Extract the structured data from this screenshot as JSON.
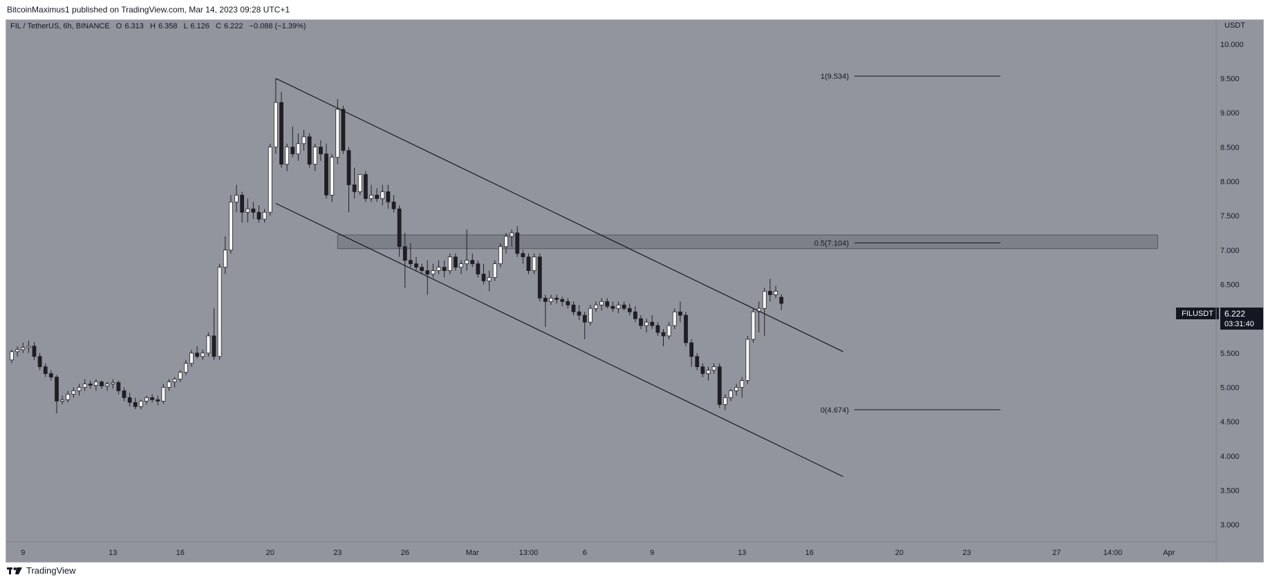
{
  "header": {
    "publisher": "BitcoinMaximus1 published on TradingView.com, Mar 14, 2023 09:28 UTC+1"
  },
  "legend": {
    "symbol": "FIL / TetherUS, 6h, BINANCE",
    "o_label": "O",
    "o": "6.313",
    "h_label": "H",
    "h": "6.358",
    "l_label": "L",
    "l": "6.126",
    "c_label": "C",
    "c": "6.222",
    "change": "−0.088 (−1.39%)"
  },
  "price_scale": {
    "currency": "USDT",
    "ticker": "FILUSDT",
    "last_price": "6.222",
    "countdown": "03:31:40"
  },
  "footer": {
    "brand": "TradingView"
  },
  "colors": {
    "background": "#93959e",
    "candle_up": "#ffffff",
    "candle_down": "#1e1e24",
    "line": "#131722",
    "zone": "#6e7079"
  },
  "chart_data": {
    "type": "candlestick",
    "ylim": [
      2.75,
      10.35
    ],
    "y_ticks": [
      "3.000",
      "3.500",
      "4.000",
      "4.500",
      "5.000",
      "5.500",
      "6.000",
      "6.500",
      "7.000",
      "7.500",
      "8.000",
      "8.500",
      "9.000",
      "9.500",
      "10.000"
    ],
    "x_ticks": [
      {
        "label": "9",
        "x": 0.5
      },
      {
        "label": "13",
        "x": 4.5
      },
      {
        "label": "16",
        "x": 7.5
      },
      {
        "label": "20",
        "x": 11.5
      },
      {
        "label": "23",
        "x": 14.5
      },
      {
        "label": "26",
        "x": 17.5
      },
      {
        "label": "Mar",
        "x": 20.5
      },
      {
        "label": "13:00",
        "x": 23
      },
      {
        "label": "6",
        "x": 25.5
      },
      {
        "label": "9",
        "x": 28.5
      },
      {
        "label": "13",
        "x": 32.5
      },
      {
        "label": "16",
        "x": 35.5
      },
      {
        "label": "20",
        "x": 39.5
      },
      {
        "label": "23",
        "x": 42.5
      },
      {
        "label": "27",
        "x": 46.5
      },
      {
        "label": "14:00",
        "x": 49
      },
      {
        "label": "Apr",
        "x": 51.5
      }
    ],
    "candles": [
      [
        0.0,
        5.4,
        5.55,
        5.35,
        5.52
      ],
      [
        0.25,
        5.52,
        5.6,
        5.45,
        5.55
      ],
      [
        0.5,
        5.55,
        5.65,
        5.5,
        5.58
      ],
      [
        0.75,
        5.58,
        5.68,
        5.5,
        5.6
      ],
      [
        1.0,
        5.6,
        5.66,
        5.4,
        5.45
      ],
      [
        1.25,
        5.45,
        5.5,
        5.25,
        5.3
      ],
      [
        1.5,
        5.3,
        5.35,
        5.15,
        5.2
      ],
      [
        1.75,
        5.2,
        5.25,
        5.1,
        5.15
      ],
      [
        2.0,
        5.15,
        5.18,
        4.62,
        4.8
      ],
      [
        2.25,
        4.8,
        4.88,
        4.75,
        4.82
      ],
      [
        2.5,
        4.82,
        4.95,
        4.78,
        4.9
      ],
      [
        2.75,
        4.9,
        5.0,
        4.85,
        4.95
      ],
      [
        3.0,
        4.95,
        5.05,
        4.88,
        5.0
      ],
      [
        3.25,
        5.0,
        5.12,
        4.95,
        5.05
      ],
      [
        3.5,
        5.05,
        5.1,
        4.98,
        5.03
      ],
      [
        3.75,
        5.03,
        5.12,
        4.95,
        5.08
      ],
      [
        4.0,
        5.08,
        5.1,
        4.98,
        5.02
      ],
      [
        4.25,
        5.02,
        5.08,
        4.95,
        5.05
      ],
      [
        4.5,
        5.05,
        5.12,
        4.98,
        5.07
      ],
      [
        4.75,
        5.07,
        5.1,
        4.9,
        4.95
      ],
      [
        5.0,
        4.95,
        5.0,
        4.8,
        4.85
      ],
      [
        5.25,
        4.85,
        4.92,
        4.72,
        4.78
      ],
      [
        5.5,
        4.78,
        4.85,
        4.68,
        4.72
      ],
      [
        5.75,
        4.72,
        4.82,
        4.68,
        4.8
      ],
      [
        6.0,
        4.8,
        4.88,
        4.75,
        4.85
      ],
      [
        6.25,
        4.85,
        4.9,
        4.78,
        4.82
      ],
      [
        6.5,
        4.82,
        4.88,
        4.74,
        4.8
      ],
      [
        6.75,
        4.8,
        5.05,
        4.76,
        5.0
      ],
      [
        7.0,
        5.0,
        5.12,
        4.95,
        5.08
      ],
      [
        7.25,
        5.08,
        5.15,
        5.0,
        5.12
      ],
      [
        7.5,
        5.12,
        5.25,
        5.08,
        5.22
      ],
      [
        7.75,
        5.22,
        5.4,
        5.18,
        5.35
      ],
      [
        8.0,
        5.35,
        5.55,
        5.3,
        5.5
      ],
      [
        8.25,
        5.5,
        5.6,
        5.42,
        5.45
      ],
      [
        8.5,
        5.45,
        5.55,
        5.4,
        5.5
      ],
      [
        8.75,
        5.5,
        5.8,
        5.45,
        5.75
      ],
      [
        9.0,
        5.75,
        6.15,
        5.4,
        5.45
      ],
      [
        9.25,
        5.45,
        6.8,
        5.4,
        6.75
      ],
      [
        9.5,
        6.75,
        7.2,
        6.65,
        7.0
      ],
      [
        9.75,
        7.0,
        7.8,
        6.95,
        7.7
      ],
      [
        10.0,
        7.7,
        7.95,
        7.55,
        7.8
      ],
      [
        10.25,
        7.8,
        7.85,
        7.4,
        7.55
      ],
      [
        10.5,
        7.55,
        7.75,
        7.4,
        7.6
      ],
      [
        10.75,
        7.6,
        7.7,
        7.45,
        7.55
      ],
      [
        11.0,
        7.55,
        7.65,
        7.4,
        7.45
      ],
      [
        11.25,
        7.45,
        7.6,
        7.4,
        7.55
      ],
      [
        11.5,
        7.55,
        8.55,
        7.5,
        8.5
      ],
      [
        11.75,
        8.5,
        9.5,
        8.4,
        9.15
      ],
      [
        12.0,
        9.15,
        9.3,
        8.2,
        8.25
      ],
      [
        12.25,
        8.25,
        8.55,
        8.15,
        8.5
      ],
      [
        12.5,
        8.5,
        8.8,
        8.35,
        8.4
      ],
      [
        12.75,
        8.4,
        8.7,
        8.3,
        8.55
      ],
      [
        13.0,
        8.55,
        8.75,
        8.45,
        8.65
      ],
      [
        13.25,
        8.65,
        8.7,
        8.2,
        8.25
      ],
      [
        13.5,
        8.25,
        8.55,
        8.15,
        8.5
      ],
      [
        13.75,
        8.5,
        8.6,
        8.3,
        8.4
      ],
      [
        14.0,
        8.4,
        8.55,
        7.75,
        7.8
      ],
      [
        14.25,
        7.8,
        8.4,
        7.7,
        8.35
      ],
      [
        14.5,
        8.35,
        9.2,
        8.25,
        9.05
      ],
      [
        14.75,
        9.05,
        9.1,
        8.4,
        8.45
      ],
      [
        15.0,
        8.45,
        8.5,
        7.55,
        7.95
      ],
      [
        15.25,
        7.95,
        8.2,
        7.75,
        7.85
      ],
      [
        15.5,
        7.85,
        8.1,
        7.8,
        8.1
      ],
      [
        15.75,
        8.1,
        8.15,
        7.7,
        7.75
      ],
      [
        16.0,
        7.75,
        7.95,
        7.7,
        7.8
      ],
      [
        16.25,
        7.8,
        7.9,
        7.7,
        7.75
      ],
      [
        16.5,
        7.75,
        7.95,
        7.65,
        7.85
      ],
      [
        16.75,
        7.85,
        7.95,
        7.6,
        7.7
      ],
      [
        17.0,
        7.7,
        7.8,
        7.55,
        7.6
      ],
      [
        17.25,
        7.6,
        7.65,
        6.9,
        7.05
      ],
      [
        17.5,
        7.05,
        7.25,
        6.45,
        6.85
      ],
      [
        17.75,
        6.85,
        7.1,
        6.75,
        6.8
      ],
      [
        18.0,
        6.8,
        6.9,
        6.7,
        6.75
      ],
      [
        18.25,
        6.75,
        6.8,
        6.65,
        6.7
      ],
      [
        18.5,
        6.7,
        6.85,
        6.35,
        6.65
      ],
      [
        18.75,
        6.65,
        6.8,
        6.6,
        6.7
      ],
      [
        19.0,
        6.7,
        6.85,
        6.65,
        6.75
      ],
      [
        19.25,
        6.75,
        6.85,
        6.6,
        6.7
      ],
      [
        19.5,
        6.7,
        6.95,
        6.65,
        6.9
      ],
      [
        19.75,
        6.9,
        6.95,
        6.7,
        6.75
      ],
      [
        20.0,
        6.75,
        6.85,
        6.65,
        6.8
      ],
      [
        20.25,
        6.8,
        7.3,
        6.7,
        6.85
      ],
      [
        20.5,
        6.85,
        6.95,
        6.75,
        6.8
      ],
      [
        20.75,
        6.8,
        6.85,
        6.6,
        6.65
      ],
      [
        21.0,
        6.65,
        6.8,
        6.5,
        6.55
      ],
      [
        21.25,
        6.55,
        6.7,
        6.4,
        6.6
      ],
      [
        21.5,
        6.6,
        6.85,
        6.55,
        6.8
      ],
      [
        21.75,
        6.8,
        7.1,
        6.75,
        7.05
      ],
      [
        22.0,
        7.05,
        7.25,
        6.95,
        7.2
      ],
      [
        22.25,
        7.2,
        7.3,
        7.05,
        7.25
      ],
      [
        22.5,
        7.25,
        7.35,
        6.9,
        6.95
      ],
      [
        22.75,
        6.95,
        7.0,
        6.8,
        6.9
      ],
      [
        23.0,
        6.9,
        6.95,
        6.65,
        6.7
      ],
      [
        23.25,
        6.7,
        6.95,
        6.65,
        6.9
      ],
      [
        23.5,
        6.9,
        6.95,
        6.25,
        6.3
      ],
      [
        23.75,
        6.3,
        6.35,
        5.88,
        6.25
      ],
      [
        24.0,
        6.25,
        6.35,
        6.2,
        6.3
      ],
      [
        24.25,
        6.3,
        6.35,
        6.22,
        6.28
      ],
      [
        24.5,
        6.28,
        6.32,
        6.18,
        6.25
      ],
      [
        24.75,
        6.25,
        6.3,
        6.15,
        6.2
      ],
      [
        25.0,
        6.2,
        6.25,
        6.05,
        6.1
      ],
      [
        25.25,
        6.1,
        6.2,
        5.98,
        6.05
      ],
      [
        25.5,
        6.05,
        6.1,
        5.7,
        5.95
      ],
      [
        25.75,
        5.95,
        6.2,
        5.9,
        6.15
      ],
      [
        26.0,
        6.15,
        6.25,
        6.1,
        6.2
      ],
      [
        26.25,
        6.2,
        6.3,
        6.12,
        6.25
      ],
      [
        26.5,
        6.25,
        6.3,
        6.15,
        6.18
      ],
      [
        26.75,
        6.18,
        6.25,
        6.1,
        6.15
      ],
      [
        27.0,
        6.15,
        6.25,
        6.08,
        6.2
      ],
      [
        27.25,
        6.2,
        6.25,
        6.12,
        6.15
      ],
      [
        27.5,
        6.15,
        6.22,
        6.05,
        6.1
      ],
      [
        27.75,
        6.1,
        6.18,
        5.95,
        6.0
      ],
      [
        28.0,
        6.0,
        6.05,
        5.85,
        5.9
      ],
      [
        28.25,
        5.9,
        6.0,
        5.8,
        5.95
      ],
      [
        28.5,
        5.95,
        6.05,
        5.85,
        5.9
      ],
      [
        28.75,
        5.9,
        5.95,
        5.75,
        5.8
      ],
      [
        29.0,
        5.8,
        5.85,
        5.6,
        5.75
      ],
      [
        29.25,
        5.75,
        5.95,
        5.7,
        5.9
      ],
      [
        29.5,
        5.9,
        6.15,
        5.85,
        6.1
      ],
      [
        29.75,
        6.1,
        6.25,
        5.95,
        6.05
      ],
      [
        30.0,
        6.05,
        6.1,
        5.6,
        5.65
      ],
      [
        30.25,
        5.65,
        5.7,
        5.3,
        5.45
      ],
      [
        30.5,
        5.45,
        5.5,
        5.25,
        5.3
      ],
      [
        30.75,
        5.3,
        5.35,
        5.15,
        5.2
      ],
      [
        31.0,
        5.2,
        5.3,
        5.1,
        5.25
      ],
      [
        31.25,
        5.25,
        5.35,
        5.2,
        5.3
      ],
      [
        31.5,
        5.3,
        5.35,
        4.7,
        4.75
      ],
      [
        31.75,
        4.75,
        4.9,
        4.67,
        4.85
      ],
      [
        32.0,
        4.85,
        4.98,
        4.8,
        4.95
      ],
      [
        32.25,
        4.95,
        5.05,
        4.88,
        5.0
      ],
      [
        32.5,
        5.0,
        5.15,
        4.85,
        5.1
      ],
      [
        32.75,
        5.1,
        5.75,
        5.05,
        5.7
      ],
      [
        33.0,
        5.7,
        6.15,
        5.65,
        6.1
      ],
      [
        33.25,
        6.1,
        6.25,
        5.8,
        6.15
      ],
      [
        33.5,
        6.15,
        6.45,
        5.75,
        6.4
      ],
      [
        33.75,
        6.4,
        6.58,
        6.25,
        6.35
      ],
      [
        34.0,
        6.35,
        6.48,
        6.3,
        6.4
      ],
      [
        34.25,
        6.313,
        6.358,
        6.126,
        6.222
      ]
    ],
    "channel_upper": [
      [
        11.75,
        9.5
      ],
      [
        37.0,
        5.52
      ]
    ],
    "channel_lower": [
      [
        11.75,
        7.68
      ],
      [
        37.0,
        3.7
      ]
    ],
    "zone": {
      "x_start": 14.5,
      "x_end": 51.0,
      "y_low": 7.02,
      "y_high": 7.22
    },
    "fib_levels": [
      {
        "label": "1(9.534)",
        "value": 9.534
      },
      {
        "label": "0.5(7.104)",
        "value": 7.104
      },
      {
        "label": "0(4.674)",
        "value": 4.674
      }
    ],
    "fib_x_range": [
      37.5,
      44.0
    ]
  }
}
